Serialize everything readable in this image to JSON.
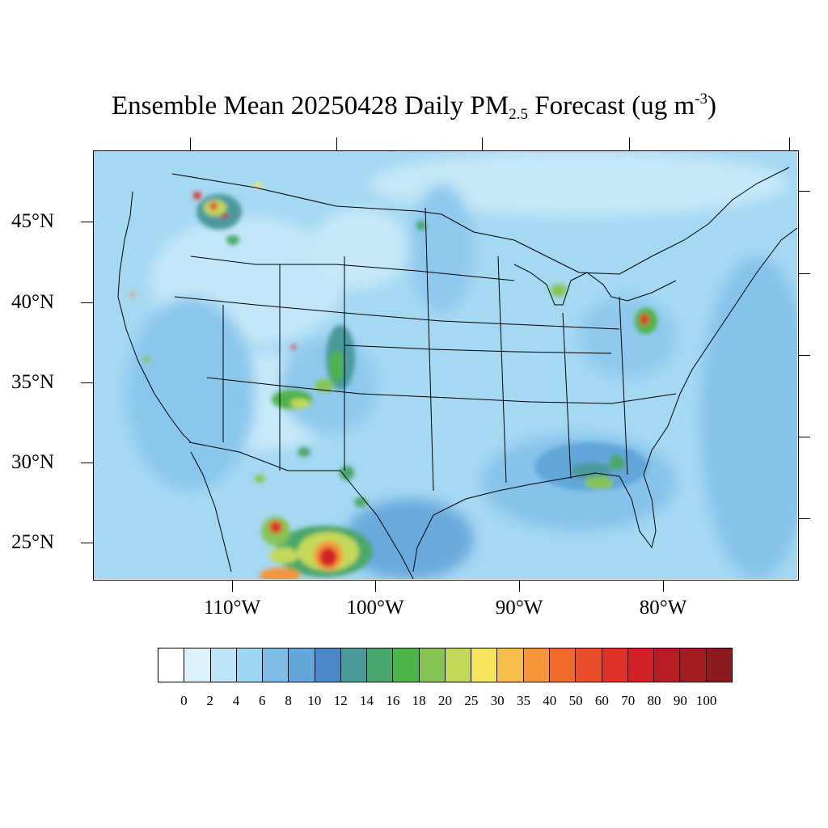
{
  "title": {
    "main": "Ensemble Mean 20250428 Daily PM",
    "sub": "2.5",
    "after": " Forecast (ug m",
    "sup": "-3",
    "close": ")"
  },
  "lat_labels": [
    "45°N",
    "40°N",
    "35°N",
    "30°N",
    "25°N"
  ],
  "lon_labels": [
    "110°W",
    "100°W",
    "90°W",
    "80°W"
  ],
  "colorbar": {
    "labels": [
      "0",
      "2",
      "4",
      "6",
      "8",
      "10",
      "12",
      "14",
      "16",
      "18",
      "20",
      "25",
      "30",
      "35",
      "40",
      "50",
      "60",
      "70",
      "80",
      "90",
      "100"
    ],
    "colors": [
      "#ffffff",
      "#def2fb",
      "#bde6f8",
      "#9dd7f4",
      "#7fbde6",
      "#62a6da",
      "#4a88c8",
      "#4a9a9c",
      "#49a76c",
      "#4db34a",
      "#86c552",
      "#c4d95a",
      "#f6e55d",
      "#f8be4a",
      "#f6953a",
      "#f26a2e",
      "#e84c2a",
      "#de3229",
      "#d22027",
      "#b81d25",
      "#a31c22",
      "#8d1a1e"
    ]
  },
  "map": {
    "background": "#a7d8f3",
    "ocean": "#8ecdf0",
    "land_light": "#c6e8f8"
  }
}
